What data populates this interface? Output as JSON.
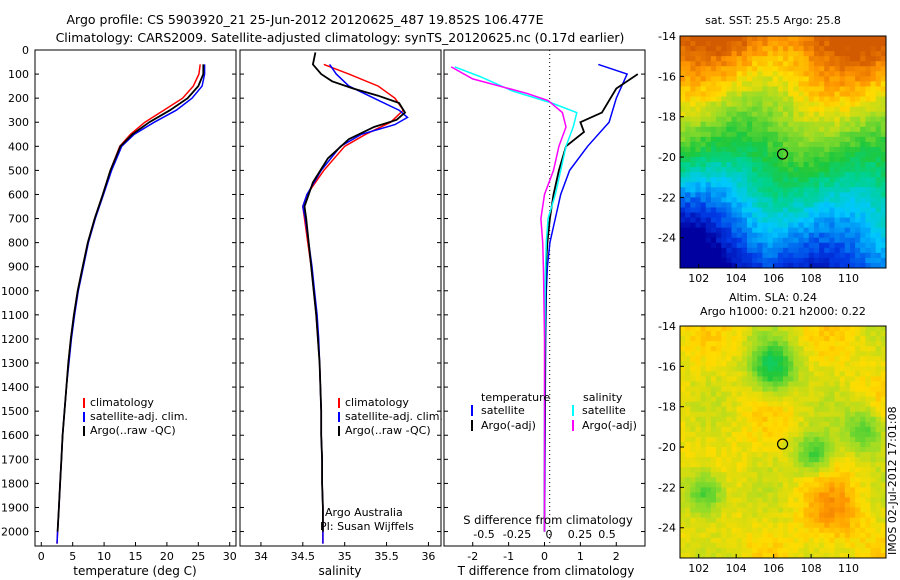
{
  "header": {
    "title_line1": "Argo profile: CS 5903920_21 25-Jun-2012 20120625_487 19.852S 106.477E",
    "title_line2": "Climatology: CARS2009. Satellite-adjusted climatology: synTS_20120625.nc (0.17d earlier)"
  },
  "colors": {
    "climatology": "#ff0000",
    "satellite": "#0000ff",
    "argo": "#000000",
    "sat_salinity": "#00ffff",
    "argo_salinity": "#ff00ff"
  },
  "chart_data": [
    {
      "type": "line",
      "id": "temperature",
      "xlabel": "temperature (deg C)",
      "ylabel": "",
      "xlim": [
        -1,
        31
      ],
      "ylim": [
        2060,
        0
      ],
      "xticks": [
        0,
        5,
        10,
        15,
        20,
        25,
        30
      ],
      "yticks": [
        0,
        100,
        200,
        300,
        400,
        500,
        600,
        700,
        800,
        900,
        1000,
        1100,
        1200,
        1300,
        1400,
        1500,
        1600,
        1700,
        1800,
        1900,
        2000
      ],
      "legend": [
        "climatology",
        "satellite-adj. clim.",
        "Argo(..raw -QC)"
      ],
      "legend_position": "bottom-center",
      "series": [
        {
          "name": "climatology",
          "color": "#ff0000",
          "points": [
            [
              25.3,
              60
            ],
            [
              25.1,
              100
            ],
            [
              24.2,
              150
            ],
            [
              22.5,
              200
            ],
            [
              19.5,
              250
            ],
            [
              16.5,
              300
            ],
            [
              14.2,
              350
            ],
            [
              12.5,
              400
            ],
            [
              11.0,
              500
            ],
            [
              9.8,
              600
            ],
            [
              8.5,
              700
            ],
            [
              7.4,
              800
            ],
            [
              6.6,
              900
            ],
            [
              5.8,
              1000
            ],
            [
              5.2,
              1100
            ],
            [
              4.7,
              1200
            ],
            [
              4.3,
              1300
            ],
            [
              4.0,
              1400
            ],
            [
              3.7,
              1500
            ],
            [
              3.4,
              1600
            ],
            [
              3.2,
              1700
            ],
            [
              3.0,
              1800
            ],
            [
              2.8,
              1900
            ],
            [
              2.6,
              2000
            ],
            [
              2.5,
              2050
            ]
          ]
        },
        {
          "name": "satellite-adj. clim.",
          "color": "#0000ff",
          "points": [
            [
              26.0,
              60
            ],
            [
              26.0,
              100
            ],
            [
              25.6,
              150
            ],
            [
              24.0,
              200
            ],
            [
              21.5,
              250
            ],
            [
              18.0,
              300
            ],
            [
              14.8,
              350
            ],
            [
              12.8,
              400
            ],
            [
              11.2,
              500
            ],
            [
              9.9,
              600
            ],
            [
              8.6,
              700
            ],
            [
              7.5,
              800
            ],
            [
              6.7,
              900
            ],
            [
              5.9,
              1000
            ],
            [
              5.3,
              1100
            ],
            [
              4.8,
              1200
            ],
            [
              4.4,
              1300
            ],
            [
              4.0,
              1400
            ],
            [
              3.7,
              1500
            ],
            [
              3.4,
              1600
            ],
            [
              3.2,
              1700
            ],
            [
              3.0,
              1800
            ],
            [
              2.8,
              1900
            ],
            [
              2.6,
              2000
            ],
            [
              2.5,
              2050
            ]
          ]
        },
        {
          "name": "Argo(..raw -QC)",
          "color": "#000000",
          "points": [
            [
              25.8,
              60
            ],
            [
              25.8,
              100
            ],
            [
              25.0,
              150
            ],
            [
              23.3,
              200
            ],
            [
              20.5,
              250
            ],
            [
              17.2,
              300
            ],
            [
              14.5,
              350
            ],
            [
              12.6,
              400
            ],
            [
              11.0,
              500
            ],
            [
              9.8,
              600
            ],
            [
              8.5,
              700
            ],
            [
              7.4,
              800
            ],
            [
              6.6,
              900
            ],
            [
              5.8,
              1000
            ],
            [
              5.2,
              1100
            ],
            [
              4.7,
              1200
            ],
            [
              4.3,
              1300
            ],
            [
              4.0,
              1400
            ],
            [
              3.7,
              1500
            ],
            [
              3.4,
              1600
            ],
            [
              3.2,
              1700
            ],
            [
              3.0,
              1800
            ],
            [
              2.8,
              1900
            ],
            [
              2.6,
              2000
            ]
          ]
        }
      ]
    },
    {
      "type": "line",
      "id": "salinity",
      "xlabel": "salinity",
      "xlim": [
        33.75,
        36.15
      ],
      "ylim": [
        2060,
        0
      ],
      "xticks": [
        34,
        34.5,
        35,
        35.5,
        36
      ],
      "legend": [
        "climatology",
        "satellite-adj. clim.",
        "Argo(..raw -QC)"
      ],
      "legend_position": "bottom-right",
      "annotations": [
        "Argo Australia",
        "PI: Susan Wijffels"
      ],
      "series": [
        {
          "name": "climatology",
          "color": "#ff0000",
          "points": [
            [
              34.75,
              60
            ],
            [
              35.05,
              100
            ],
            [
              35.4,
              150
            ],
            [
              35.6,
              200
            ],
            [
              35.7,
              250
            ],
            [
              35.55,
              300
            ],
            [
              35.25,
              350
            ],
            [
              35.0,
              400
            ],
            [
              34.75,
              500
            ],
            [
              34.55,
              600
            ],
            [
              34.5,
              650
            ],
            [
              34.52,
              700
            ],
            [
              34.56,
              800
            ],
            [
              34.6,
              900
            ],
            [
              34.63,
              1000
            ],
            [
              34.66,
              1100
            ],
            [
              34.68,
              1200
            ],
            [
              34.7,
              1300
            ],
            [
              34.71,
              1400
            ],
            [
              34.72,
              1500
            ],
            [
              34.72,
              1600
            ],
            [
              34.73,
              1700
            ],
            [
              34.73,
              1800
            ],
            [
              34.74,
              1900
            ],
            [
              34.74,
              2000
            ],
            [
              34.74,
              2050
            ]
          ]
        },
        {
          "name": "satellite-adj. clim.",
          "color": "#0000ff",
          "points": [
            [
              34.82,
              60
            ],
            [
              34.9,
              100
            ],
            [
              35.05,
              150
            ],
            [
              35.35,
              200
            ],
            [
              35.65,
              250
            ],
            [
              35.75,
              280
            ],
            [
              35.6,
              310
            ],
            [
              35.2,
              350
            ],
            [
              34.95,
              400
            ],
            [
              34.72,
              500
            ],
            [
              34.55,
              600
            ],
            [
              34.5,
              650
            ],
            [
              34.53,
              700
            ],
            [
              34.57,
              800
            ],
            [
              34.61,
              900
            ],
            [
              34.64,
              1000
            ],
            [
              34.67,
              1100
            ],
            [
              34.69,
              1200
            ],
            [
              34.7,
              1300
            ],
            [
              34.71,
              1400
            ],
            [
              34.72,
              1500
            ],
            [
              34.72,
              1600
            ],
            [
              34.73,
              1700
            ],
            [
              34.73,
              1800
            ],
            [
              34.74,
              1900
            ],
            [
              34.74,
              2000
            ],
            [
              34.74,
              2050
            ]
          ]
        },
        {
          "name": "Argo(..raw -QC)",
          "color": "#000000",
          "points": [
            [
              34.65,
              10
            ],
            [
              34.62,
              60
            ],
            [
              34.72,
              100
            ],
            [
              34.85,
              130
            ],
            [
              35.1,
              160
            ],
            [
              35.4,
              190
            ],
            [
              35.65,
              220
            ],
            [
              35.72,
              260
            ],
            [
              35.62,
              290
            ],
            [
              35.35,
              320
            ],
            [
              35.05,
              370
            ],
            [
              34.8,
              450
            ],
            [
              34.62,
              550
            ],
            [
              34.52,
              650
            ],
            [
              34.54,
              700
            ],
            [
              34.57,
              800
            ],
            [
              34.6,
              900
            ],
            [
              34.63,
              1000
            ],
            [
              34.66,
              1100
            ],
            [
              34.68,
              1200
            ],
            [
              34.7,
              1300
            ],
            [
              34.71,
              1400
            ],
            [
              34.72,
              1500
            ],
            [
              34.72,
              1600
            ],
            [
              34.73,
              1700
            ],
            [
              34.73,
              1800
            ],
            [
              34.74,
              1900
            ],
            [
              34.74,
              2000
            ]
          ]
        }
      ]
    },
    {
      "type": "line",
      "id": "difference",
      "xlabel": "T difference from climatology",
      "xlabel_top": "S difference from climatology",
      "xlim": [
        -2.8,
        2.8
      ],
      "ylim": [
        2060,
        0
      ],
      "xticks": [
        -2,
        -1,
        0,
        1,
        2
      ],
      "top_xticks": [
        "-0.5",
        "-0.25",
        "0",
        "0.25",
        "0.5"
      ],
      "legend": {
        "temperature": [
          "satellite",
          "Argo(-adj)"
        ],
        "salinity": [
          "satellite",
          "Argo(-adj)"
        ]
      },
      "legend_headers": [
        "temperature",
        "salinity"
      ],
      "legend_position": "bottom",
      "series": [
        {
          "name": "T satellite",
          "color": "#0000ff",
          "points": [
            [
              1.5,
              60
            ],
            [
              2.3,
              100
            ],
            [
              2.0,
              200
            ],
            [
              1.8,
              300
            ],
            [
              1.2,
              400
            ],
            [
              0.7,
              500
            ],
            [
              0.45,
              600
            ],
            [
              0.3,
              700
            ],
            [
              0.15,
              800
            ],
            [
              0.08,
              900
            ],
            [
              0.05,
              1000
            ],
            [
              0.03,
              1200
            ],
            [
              0.02,
              1500
            ],
            [
              0.01,
              1800
            ],
            [
              0.0,
              2000
            ]
          ]
        },
        {
          "name": "T Argo(-adj)",
          "color": "#000000",
          "points": [
            [
              2.6,
              100
            ],
            [
              2.0,
              160
            ],
            [
              1.6,
              260
            ],
            [
              1.0,
              300
            ],
            [
              1.1,
              340
            ],
            [
              0.6,
              400
            ],
            [
              0.4,
              500
            ],
            [
              0.25,
              600
            ],
            [
              0.15,
              700
            ],
            [
              0.08,
              800
            ],
            [
              0.04,
              900
            ],
            [
              0.03,
              1000
            ],
            [
              0.02,
              1200
            ],
            [
              0.01,
              1500
            ],
            [
              0.0,
              1800
            ],
            [
              0.0,
              2000
            ]
          ]
        },
        {
          "name": "S satellite",
          "color": "#00ffff",
          "points": [
            [
              -2.5,
              70
            ],
            [
              -1.8,
              110
            ],
            [
              -0.9,
              170
            ],
            [
              0.2,
              220
            ],
            [
              0.9,
              260
            ],
            [
              0.8,
              320
            ],
            [
              0.6,
              400
            ],
            [
              0.45,
              500
            ],
            [
              0.3,
              600
            ],
            [
              0.1,
              700
            ],
            [
              0.05,
              800
            ],
            [
              0.03,
              900
            ],
            [
              0.02,
              1000
            ],
            [
              0.01,
              1200
            ],
            [
              0.0,
              1500
            ],
            [
              0.0,
              2000
            ]
          ]
        },
        {
          "name": "S Argo(-adj)",
          "color": "#ff00ff",
          "points": [
            [
              -2.6,
              70
            ],
            [
              -2.0,
              120
            ],
            [
              -0.5,
              180
            ],
            [
              0.1,
              210
            ],
            [
              0.5,
              260
            ],
            [
              0.6,
              320
            ],
            [
              0.4,
              400
            ],
            [
              0.25,
              500
            ],
            [
              0.0,
              600
            ],
            [
              -0.1,
              700
            ],
            [
              -0.05,
              800
            ],
            [
              -0.03,
              900
            ],
            [
              -0.02,
              1000
            ],
            [
              0.0,
              1200
            ],
            [
              0.0,
              1500
            ],
            [
              0.0,
              2000
            ]
          ]
        }
      ]
    },
    {
      "type": "heatmap",
      "id": "sst_map",
      "title": "sat. SST: 25.5  Argo: 25.8",
      "xlim": [
        101,
        112
      ],
      "ylim": [
        -25.5,
        -14
      ],
      "xticks": [
        102,
        104,
        106,
        108,
        110
      ],
      "yticks": [
        -14,
        -16,
        -18,
        -20,
        -22,
        -24
      ],
      "marker": [
        106.477,
        -19.852
      ]
    },
    {
      "type": "heatmap",
      "id": "sla_map",
      "title": "Altim. SLA: 0.24",
      "subtitle": "Argo h1000: 0.21  h2000: 0.22",
      "xlim": [
        101,
        112
      ],
      "ylim": [
        -25.5,
        -14
      ],
      "xticks": [
        102,
        104,
        106,
        108,
        110
      ],
      "yticks": [
        -14,
        -16,
        -18,
        -20,
        -22,
        -24
      ],
      "marker": [
        106.477,
        -19.852
      ]
    }
  ],
  "footer": {
    "credit": "IMOS 02-Jul-2012 17:01:08"
  }
}
